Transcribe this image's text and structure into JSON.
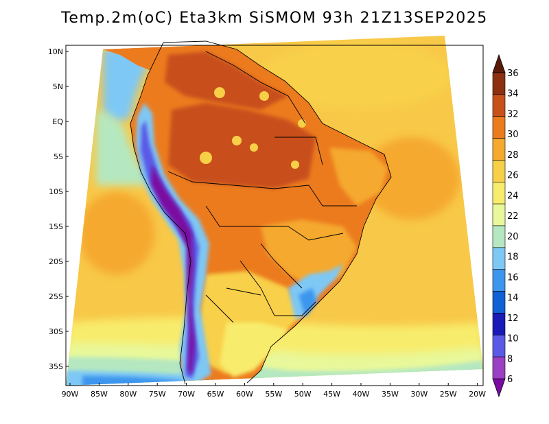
{
  "title": "Temp.2m(oC) Eta3km SiSMOM 93h 21Z13SEP2025",
  "axes": {
    "lat_labels": [
      "10N",
      "5N",
      "EQ",
      "5S",
      "10S",
      "15S",
      "20S",
      "25S",
      "30S",
      "35S"
    ],
    "lon_labels": [
      "90W",
      "85W",
      "80W",
      "75W",
      "70W",
      "65W",
      "60W",
      "55W",
      "50W",
      "45W",
      "40W",
      "35W",
      "30W",
      "25W",
      "20W"
    ]
  },
  "colorbar": {
    "values": [
      "6",
      "8",
      "10",
      "12",
      "14",
      "16",
      "18",
      "20",
      "22",
      "24",
      "26",
      "28",
      "30",
      "32",
      "34",
      "36"
    ],
    "colors": [
      "#7a0aa0",
      "#9b3fc4",
      "#5a5ae6",
      "#1a1ab8",
      "#1060d6",
      "#3c96ee",
      "#7ec8f5",
      "#b5e8c0",
      "#e8f89a",
      "#f8ec6c",
      "#f8d048",
      "#f5a92e",
      "#ec7b1e",
      "#c8501a",
      "#8c3010",
      "#5a1a08"
    ]
  },
  "chart_data": {
    "type": "heatmap",
    "variable": "Temp.2m(oC)",
    "model": "Eta3km SiSMOM",
    "forecast_hour": "93h",
    "valid_time": "21Z13SEP2025",
    "lon_range": [
      "90W",
      "20W"
    ],
    "lat_range": [
      "10N",
      "35S"
    ],
    "scale_min": 6,
    "scale_max": 36
  }
}
